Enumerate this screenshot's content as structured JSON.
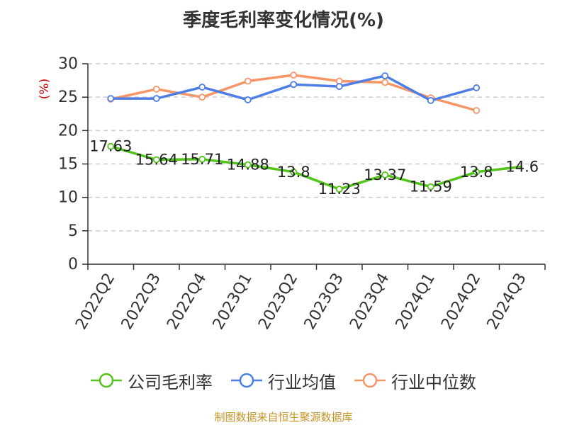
{
  "title": "季度毛利率变化情况(%)",
  "source": "制图数据来自恒生聚源数据库",
  "colors": {
    "company": "#52c41a",
    "industry_avg": "#4e7ee5",
    "industry_median": "#f79566",
    "grid": "#cccccc",
    "axis": "#333333",
    "yunit": "#cc0000"
  },
  "chart_data": {
    "type": "line",
    "title": "季度毛利率变化情况(%)",
    "xlabel": "",
    "ylabel": "(%)",
    "ylim": [
      0,
      30
    ],
    "yticks": [
      0,
      5,
      10,
      15,
      20,
      25,
      30
    ],
    "grid": "horizontal-dashed",
    "legend_position": "bottom",
    "categories": [
      "2022Q2",
      "2022Q3",
      "2022Q4",
      "2023Q1",
      "2023Q2",
      "2023Q3",
      "2023Q4",
      "2024Q1",
      "2024Q2",
      "2024Q3"
    ],
    "series": [
      {
        "name": "公司毛利率",
        "color": "#52c41a",
        "values": [
          17.63,
          15.64,
          15.71,
          14.88,
          13.8,
          11.23,
          13.37,
          11.59,
          13.8,
          14.6
        ],
        "labels": [
          "17.63",
          "15.64",
          "15.71",
          "14.88",
          "13.8",
          "11.23",
          "13.37",
          "11.59",
          "13.8",
          "14.6"
        ],
        "markers": [
          true,
          true,
          true,
          true,
          true,
          true,
          true,
          true,
          true,
          false
        ]
      },
      {
        "name": "行业均值",
        "color": "#4e7ee5",
        "values": [
          24.8,
          24.8,
          26.5,
          24.6,
          26.9,
          26.6,
          28.2,
          24.5,
          26.4,
          null
        ]
      },
      {
        "name": "行业中位数",
        "color": "#f79566",
        "values": [
          24.7,
          26.2,
          25.0,
          27.4,
          28.3,
          27.4,
          27.2,
          24.9,
          23.0,
          null
        ]
      }
    ]
  }
}
